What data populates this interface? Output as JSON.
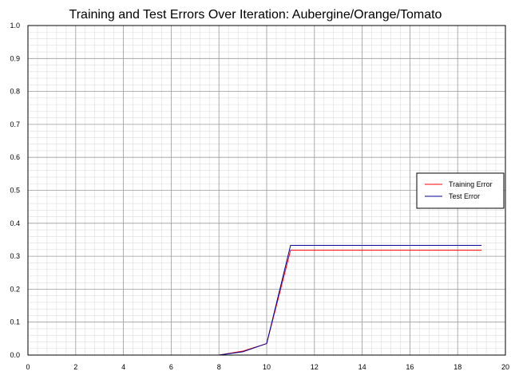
{
  "chart_data": {
    "type": "line",
    "title": "Training and Test Errors Over Iteration: Aubergine/Orange/Tomato",
    "xlabel": "",
    "ylabel": "",
    "xlim": [
      0,
      20
    ],
    "ylim": [
      0,
      1.0
    ],
    "x_ticks": [
      0,
      2,
      4,
      6,
      8,
      10,
      12,
      14,
      16,
      18,
      20
    ],
    "y_ticks": [
      "0.0",
      "0.1",
      "0.2",
      "0.3",
      "0.4",
      "0.5",
      "0.6",
      "0.7",
      "0.8",
      "0.9",
      "1.0"
    ],
    "grid": true,
    "legend_position": "right",
    "x": [
      0,
      1,
      2,
      3,
      4,
      5,
      6,
      7,
      8,
      9,
      10,
      11,
      12,
      13,
      14,
      15,
      16,
      17,
      18,
      19
    ],
    "series": [
      {
        "name": "Training Error",
        "color": "#ff0000",
        "values": [
          0,
          0,
          0,
          0,
          0,
          0,
          0,
          0,
          0,
          0.012,
          0.035,
          0.318,
          0.318,
          0.318,
          0.318,
          0.318,
          0.318,
          0.318,
          0.318,
          0.318
        ]
      },
      {
        "name": "Test Error",
        "color": "#000099",
        "values": [
          0,
          0,
          0,
          0,
          0,
          0,
          0,
          0,
          0,
          0.01,
          0.035,
          0.333,
          0.333,
          0.333,
          0.333,
          0.333,
          0.333,
          0.333,
          0.333,
          0.333
        ]
      }
    ]
  }
}
